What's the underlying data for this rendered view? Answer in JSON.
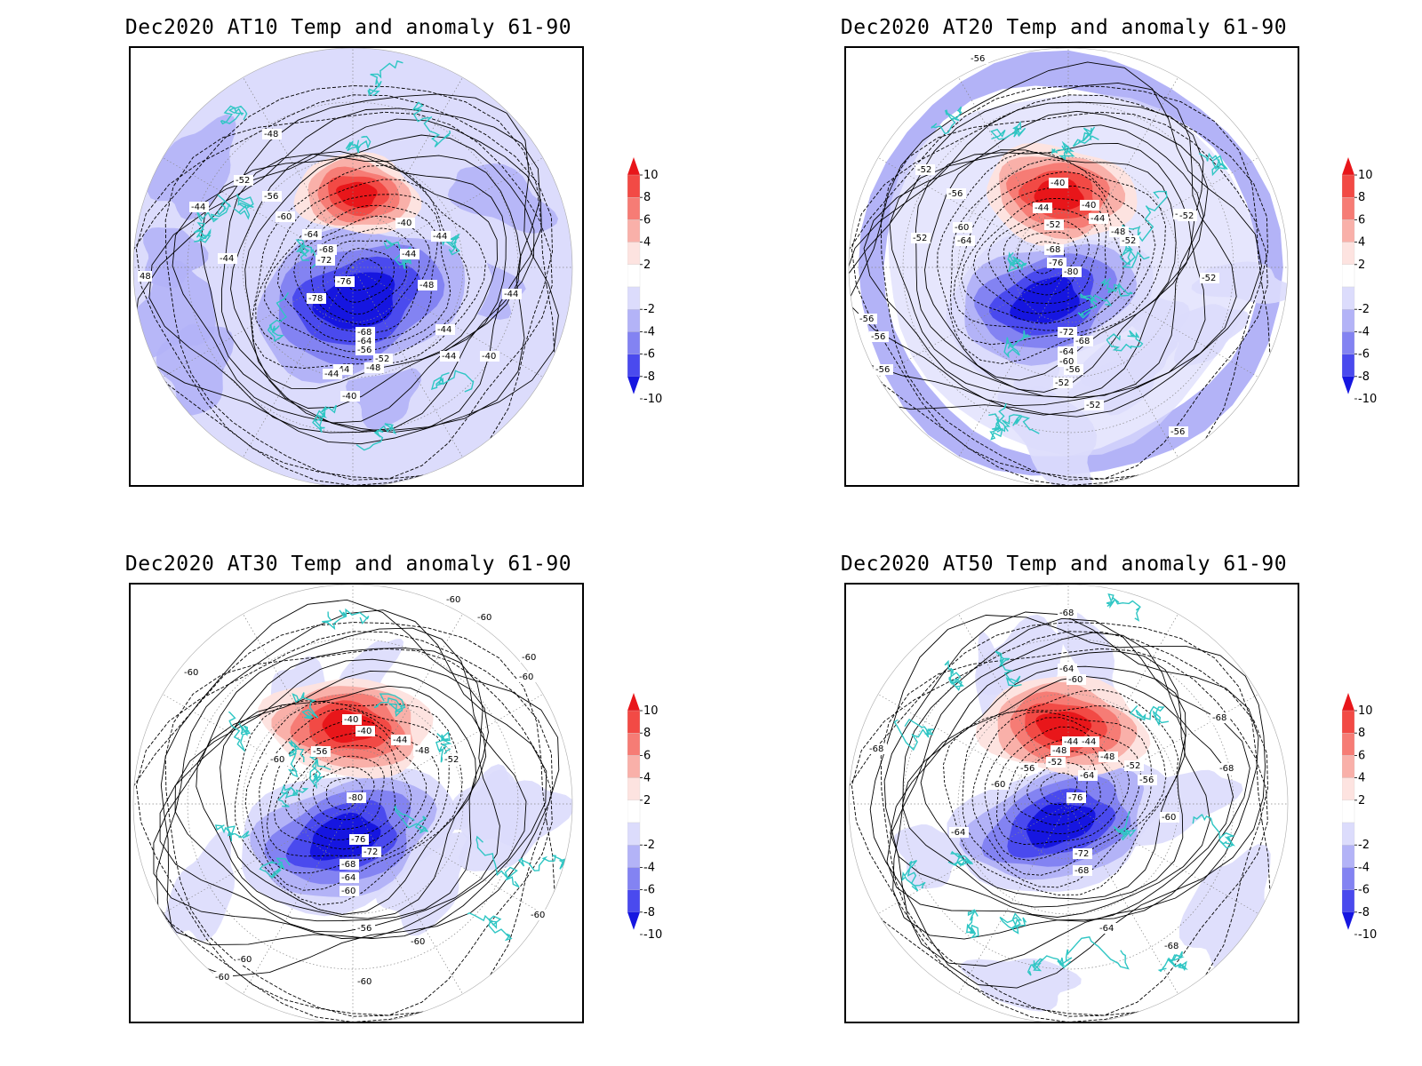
{
  "panels": [
    {
      "title": "Dec2020 AT10 Temp and anomaly 61-90",
      "contour_labels": [
        "-48",
        "-44",
        "-52",
        "-56",
        "-44",
        "-60",
        "-64",
        "-68",
        "-72",
        "-76",
        "-78",
        "-44",
        "-40",
        "-40",
        "-44",
        "-48",
        "-44",
        "-68",
        "-64",
        "-56",
        "-52",
        "-48",
        "-44",
        "-44",
        "-40",
        "-44",
        "-44",
        "48"
      ]
    },
    {
      "title": "Dec2020 AT20 Temp and anomaly 61-90",
      "contour_labels": [
        "-56",
        "-52",
        "-56",
        "-52",
        "-60",
        "-64",
        "-40",
        "-40",
        "-44",
        "-44",
        "-48",
        "-52",
        "-52",
        "-52",
        "-68",
        "-76",
        "-80",
        "-52",
        "-72",
        "-68",
        "-64",
        "-60",
        "-56",
        "-52",
        "-52",
        "-56",
        "-56",
        "-56",
        "-52",
        "-56"
      ]
    },
    {
      "title": "Dec2020 AT30 Temp and anomaly 61-90",
      "contour_labels": [
        "-60",
        "-60",
        "-60",
        "-60",
        "-60",
        "-40",
        "-40",
        "-44",
        "-48",
        "-52",
        "-56",
        "-60",
        "-80",
        "-76",
        "-72",
        "-68",
        "-64",
        "-60",
        "-56",
        "-60",
        "-60",
        "-60",
        "-60",
        "-60"
      ]
    },
    {
      "title": "Dec2020 AT50 Temp and anomaly 61-90",
      "contour_labels": [
        "-68",
        "-64",
        "-60",
        "-68",
        "-44",
        "-44",
        "-48",
        "-48",
        "-52",
        "-52",
        "-56",
        "-56",
        "-64",
        "-60",
        "-76",
        "-64",
        "-72",
        "-68",
        "-60",
        "-68",
        "-68",
        "-64",
        "-68"
      ]
    }
  ],
  "colorbar": {
    "labels": [
      "10",
      "8",
      "6",
      "4",
      "2",
      "-2",
      "-4",
      "-6",
      "-8",
      "-10"
    ],
    "colors": [
      "#e8161a",
      "#f24a45",
      "#f67c75",
      "#f9b0a9",
      "#fde3e0",
      "#ffffff",
      "#dcdcfc",
      "#b3b3f7",
      "#8383f2",
      "#4a4aee",
      "#1616e0"
    ]
  },
  "colors": {
    "coast": "#2fc6c4",
    "contour": "#000000",
    "warm": "#e8161a",
    "cold": "#1616e0"
  }
}
